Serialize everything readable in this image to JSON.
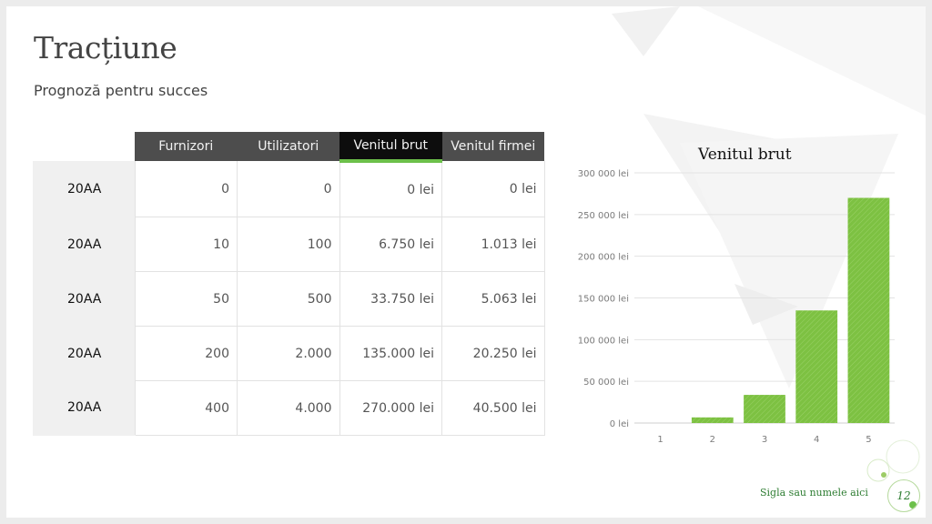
{
  "slide": {
    "title": "Tracțiune",
    "subtitle": "Prognoză pentru succes",
    "footer": "Sigla sau numele aici",
    "page_number": "12"
  },
  "table": {
    "headers": [
      "Furnizori",
      "Utilizatori",
      "Venitul brut",
      "Venitul firmei"
    ],
    "active_header_index": 2,
    "rows": [
      {
        "year": "20AA",
        "cells": [
          "0",
          "0",
          "0 lei",
          "0 lei"
        ]
      },
      {
        "year": "20AA",
        "cells": [
          "10",
          "100",
          "6.750 lei",
          "1.013 lei"
        ]
      },
      {
        "year": "20AA",
        "cells": [
          "50",
          "500",
          "33.750 lei",
          "5.063 lei"
        ]
      },
      {
        "year": "20AA",
        "cells": [
          "200",
          "2.000",
          "135.000 lei",
          "20.250 lei"
        ]
      },
      {
        "year": "20AA",
        "cells": [
          "400",
          "4.000",
          "270.000 lei",
          "40.500 lei"
        ]
      }
    ]
  },
  "chart_data": {
    "type": "bar",
    "title": "Venitul brut",
    "categories": [
      "1",
      "2",
      "3",
      "4",
      "5"
    ],
    "values": [
      0,
      6750,
      33750,
      135000,
      270000
    ],
    "ylim": [
      0,
      300000
    ],
    "yticks": [
      0,
      50000,
      100000,
      150000,
      200000,
      250000,
      300000
    ],
    "ytick_labels": [
      "0 lei",
      "50 000 lei",
      "100 000 lei",
      "150 000 lei",
      "200 000 lei",
      "250 000 lei",
      "300 000 lei"
    ],
    "grid": true,
    "bar_color": "#7dc142"
  },
  "colors": {
    "accent": "#6cc04a",
    "header_bg": "#4d4d4d",
    "active_header_bg": "#0d0d0d"
  }
}
